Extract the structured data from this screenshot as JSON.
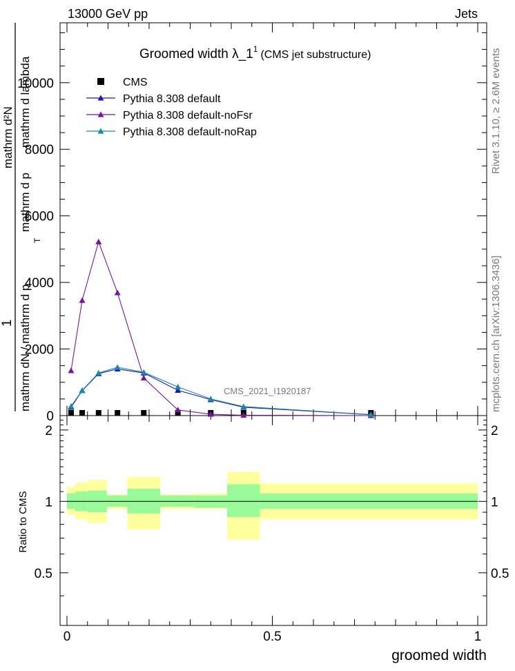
{
  "header": {
    "left": "13000 GeV pp",
    "right": "Jets"
  },
  "side": {
    "rivet": "Rivet 3.1.10, ≥ 2.6M events",
    "mcplots": "mcplots.cern.ch [arXiv:1306.3436]"
  },
  "chart_data": [
    {
      "type": "line",
      "title_main": "Groomed width  λ_1",
      "title_sup": "1",
      "title_sub": "(CMS jet substructure)",
      "analysis_label": "CMS_2021_I1920187",
      "ylabel_numer": "1",
      "ylabel_denom": "mathrm dN / mathrm d p",
      "ylabel_top_numer": "mathrm d²N",
      "ylabel_top_denom": "mathrm d p",
      "ylabel_top_tail": "mathrm d lambda",
      "ylabel_T": "T",
      "xlim": [
        0,
        1
      ],
      "ylim": [
        0,
        11800
      ],
      "yticks": [
        0,
        2000,
        4000,
        6000,
        8000,
        10000
      ],
      "ytick_labels": [
        "0",
        "2000",
        "4000",
        "6000",
        "8000",
        "10000"
      ],
      "x": [
        0.01,
        0.037,
        0.077,
        0.123,
        0.187,
        0.27,
        0.35,
        0.43,
        0.74
      ],
      "series": [
        {
          "name": "CMS",
          "color": "#000000",
          "marker": "square",
          "values": [
            10,
            10,
            15,
            15,
            10,
            5,
            2,
            1,
            0
          ]
        },
        {
          "name": "Pythia 8.308 default",
          "color": "#1a1ab4",
          "marker": "triangle",
          "values": [
            250,
            750,
            1260,
            1400,
            1280,
            760,
            480,
            250,
            25
          ]
        },
        {
          "name": "Pythia 8.308 default-noFsr",
          "color": "#7a14a0",
          "marker": "triangle",
          "values": [
            1350,
            3460,
            5220,
            3690,
            1130,
            170,
            40,
            10,
            0
          ]
        },
        {
          "name": "Pythia 8.308 default-noRap",
          "color": "#1a8aa8",
          "marker": "triangle",
          "values": [
            280,
            760,
            1280,
            1450,
            1300,
            860,
            500,
            270,
            30
          ]
        }
      ]
    },
    {
      "type": "area",
      "ylabel": "Ratio to CMS",
      "xlabel": "groomed width",
      "xlim": [
        0,
        1
      ],
      "ylim": [
        0.3,
        2.3
      ],
      "yticks": [
        0.5,
        1,
        2
      ],
      "ytick_labels": [
        "0.5",
        "1",
        "2"
      ],
      "xticks": [
        0,
        0.5,
        1
      ],
      "xtick_labels": [
        "0",
        "0.5",
        "1"
      ],
      "bins": [
        [
          0,
          0.02
        ],
        [
          0.02,
          0.05
        ],
        [
          0.05,
          0.097
        ],
        [
          0.097,
          0.147
        ],
        [
          0.147,
          0.227
        ],
        [
          0.227,
          0.31
        ],
        [
          0.31,
          0.39
        ],
        [
          0.39,
          0.47
        ],
        [
          0.47,
          1.0
        ]
      ],
      "inner_band": [
        [
          0.93,
          1.08
        ],
        [
          0.91,
          1.1
        ],
        [
          0.9,
          1.11
        ],
        [
          0.95,
          1.06
        ],
        [
          0.89,
          1.13
        ],
        [
          0.95,
          1.06
        ],
        [
          0.94,
          1.06
        ],
        [
          0.86,
          1.18
        ],
        [
          0.93,
          1.08
        ]
      ],
      "outer_band": [
        [
          0.88,
          1.15
        ],
        [
          0.84,
          1.2
        ],
        [
          0.81,
          1.23
        ],
        [
          0.93,
          1.07
        ],
        [
          0.76,
          1.27
        ],
        [
          0.93,
          1.07
        ],
        [
          0.93,
          1.08
        ],
        [
          0.69,
          1.33
        ],
        [
          0.84,
          1.19
        ]
      ],
      "inner_color": "#98fa98",
      "outer_color": "#ffff9e"
    }
  ]
}
